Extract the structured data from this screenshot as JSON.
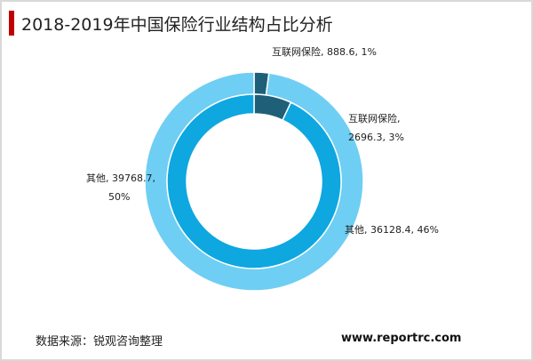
{
  "title": "2018-2019年中国保险行业结构占比分析",
  "source": "数据来源：锐观咨询整理",
  "website": "www.reportrc.com",
  "chart_data": {
    "type": "pie",
    "variant": "nested-donut",
    "title": "2018-2019年中国保险行业结构占比分析",
    "rings": [
      {
        "ring": "outer",
        "slices": [
          {
            "label": "互联网保险",
            "value": 888.6,
            "percent": 1,
            "color": "#1f5f78"
          },
          {
            "label": "其他",
            "value": 39768.7,
            "percent": 50,
            "color": "#6fcef3"
          }
        ],
        "gap_slice": {
          "value": 0.9,
          "color": "#7aa7b8"
        }
      },
      {
        "ring": "inner",
        "slices": [
          {
            "label": "互联网保险",
            "value": 2696.3,
            "percent": 3,
            "color": "#1f5f78"
          },
          {
            "label": "其他",
            "value": 36128.4,
            "percent": 46,
            "color": "#0ea7e0"
          }
        ],
        "gap_slice": {
          "value": 1.2,
          "color": "#6b97a8"
        }
      }
    ],
    "labels": {
      "outer_internet": [
        "互联网保险, 888.6, 1%"
      ],
      "inner_internet": [
        "互联网保险,",
        "2696.3, 3%"
      ],
      "outer_other": [
        "其他, 39768.7,",
        "50%"
      ],
      "inner_other": [
        "其他, 36128.4, 46%"
      ]
    }
  }
}
